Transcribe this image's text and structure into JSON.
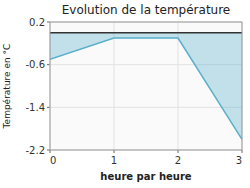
{
  "chart_data": {
    "type": "area",
    "title": "Evolution de la température",
    "xlabel": "heure par heure",
    "ylabel": "Température en °C",
    "x": [
      0,
      1,
      2,
      3
    ],
    "values": [
      -0.5,
      -0.1,
      -0.1,
      -2.0
    ],
    "baseline": 0.0,
    "color": "#5aafca",
    "xlim": [
      0,
      3
    ],
    "ylim": [
      -2.2,
      0.2
    ],
    "xticks": [
      0,
      1,
      2,
      3
    ],
    "yticks": [
      0.2,
      -0.6,
      -1.4,
      -2.2
    ],
    "grid": true
  }
}
